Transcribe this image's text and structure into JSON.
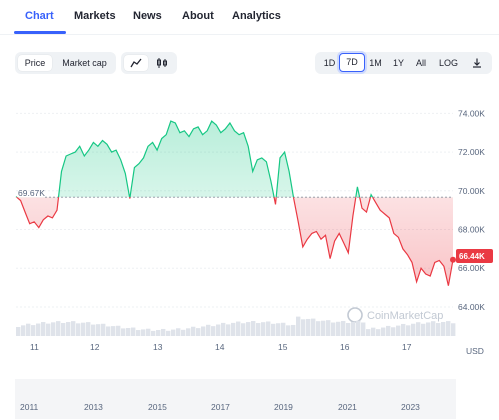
{
  "tabs": [
    "Chart",
    "Markets",
    "News",
    "About",
    "Analytics"
  ],
  "toolbar": {
    "type_buttons": [
      "Price",
      "Market cap"
    ],
    "range_buttons": [
      "1D",
      "7D",
      "1M",
      "1Y",
      "All",
      "LOG"
    ],
    "active_range": "7D",
    "line_icon": "line-chart-icon",
    "candle_icon": "candlestick-icon",
    "download_icon": "download-icon"
  },
  "chart": {
    "open_label": "69.67K",
    "last_label": "66.44K",
    "watermark": "CoinMarketCap",
    "currency": "USD",
    "colors": {
      "up": "#16c784",
      "down": "#ea3943",
      "accent": "#3861fb"
    }
  },
  "chart_data": {
    "type": "line",
    "x_ticks": [
      "11",
      "12",
      "13",
      "14",
      "15",
      "16",
      "17"
    ],
    "y_ticks": [
      "74.00K",
      "72.00K",
      "70.00K",
      "68.00K",
      "66.00K",
      "64.00K"
    ],
    "ylim": [
      62500,
      75000
    ],
    "baseline": 69670,
    "last_value": 66440,
    "overview_ticks": [
      "2011",
      "2013",
      "2015",
      "2017",
      "2019",
      "2021",
      "2023"
    ],
    "series": [
      {
        "values": [
          69700,
          69500,
          68900,
          68300,
          68400,
          68100,
          68500,
          68700,
          68600,
          69000,
          71000,
          71800,
          71900,
          72000,
          72300,
          71800,
          72100,
          72500,
          72300,
          72600,
          72400,
          72000,
          72100,
          71600,
          70900,
          69600,
          71200,
          71400,
          71700,
          72300,
          72500,
          72100,
          72700,
          72900,
          73600,
          73500,
          73000,
          73100,
          72800,
          73200,
          73300,
          72900,
          73100,
          73600,
          73400,
          73000,
          73200,
          73500,
          73100,
          72900,
          73000,
          72300,
          71000,
          71600,
          71700,
          71500,
          70500,
          69300,
          71700,
          72000,
          71000,
          69600,
          68400,
          67100,
          67500,
          67800,
          67900,
          67500,
          67700,
          66500,
          67400,
          67800,
          67300,
          66800,
          68700,
          70200,
          69100,
          68900,
          69800,
          69400,
          69000,
          68800,
          68600,
          67800,
          67600,
          67000,
          66700,
          66300,
          65300,
          66000,
          65700,
          65600,
          66300,
          66400,
          66100,
          65100,
          66440
        ]
      }
    ]
  }
}
